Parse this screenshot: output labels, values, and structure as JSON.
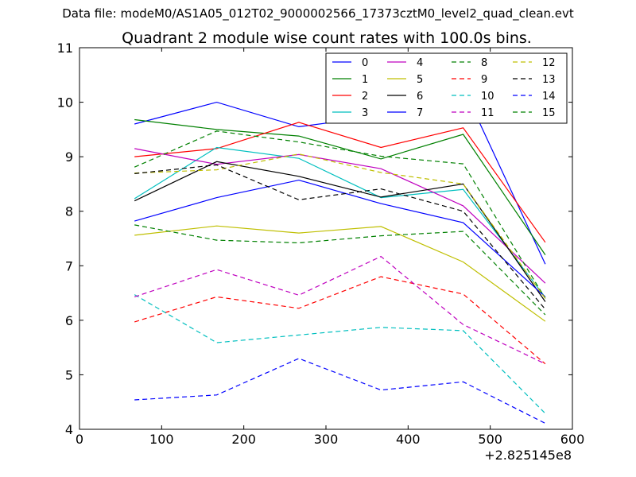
{
  "suptitle": "Data file: modeM0/AS1A05_012T02_9000002566_17373cztM0_level2_quad_clean.evt",
  "chart_data": {
    "type": "line",
    "title": "Quadrant 2 module wise count rates with 100.0s bins.",
    "xlim": [
      0,
      600
    ],
    "ylim": [
      4,
      11
    ],
    "x_ticks": [
      0,
      100,
      200,
      300,
      400,
      500,
      600
    ],
    "y_ticks": [
      4,
      5,
      6,
      7,
      8,
      9,
      10,
      11
    ],
    "x_offset_label": "+2.825145e8",
    "legend_position": "top-right",
    "x": [
      67,
      167,
      267,
      367,
      467,
      567
    ],
    "series": [
      {
        "name": "0",
        "color": "#0000ff",
        "dash": "solid",
        "values": [
          9.6,
          10.0,
          9.55,
          9.75,
          10.27,
          7.03
        ]
      },
      {
        "name": "1",
        "color": "#008000",
        "dash": "solid",
        "values": [
          9.68,
          9.5,
          9.38,
          8.96,
          9.41,
          7.2
        ]
      },
      {
        "name": "2",
        "color": "#ff0000",
        "dash": "solid",
        "values": [
          9.0,
          9.15,
          9.63,
          9.17,
          9.53,
          7.43
        ]
      },
      {
        "name": "3",
        "color": "#00bfbf",
        "dash": "solid",
        "values": [
          8.23,
          9.17,
          8.97,
          8.25,
          8.4,
          6.42
        ]
      },
      {
        "name": "4",
        "color": "#bf00bf",
        "dash": "solid",
        "values": [
          9.15,
          8.86,
          9.04,
          8.78,
          8.1,
          6.68
        ]
      },
      {
        "name": "5",
        "color": "#bfbf00",
        "dash": "solid",
        "values": [
          7.56,
          7.73,
          7.6,
          7.72,
          7.07,
          5.98
        ]
      },
      {
        "name": "6",
        "color": "#000000",
        "dash": "solid",
        "values": [
          8.19,
          8.91,
          8.64,
          8.26,
          8.5,
          6.34
        ]
      },
      {
        "name": "7",
        "color": "#0000ff",
        "dash": "solid",
        "values": [
          7.82,
          8.25,
          8.57,
          8.14,
          7.79,
          6.43
        ]
      },
      {
        "name": "8",
        "color": "#008000",
        "dash": "dashed",
        "values": [
          8.81,
          9.47,
          9.27,
          9.01,
          8.87,
          6.4
        ]
      },
      {
        "name": "9",
        "color": "#ff0000",
        "dash": "dashed",
        "values": [
          5.97,
          6.43,
          6.22,
          6.8,
          6.48,
          5.2
        ]
      },
      {
        "name": "10",
        "color": "#00bfbf",
        "dash": "dashed",
        "values": [
          6.47,
          5.59,
          5.73,
          5.87,
          5.81,
          4.29
        ]
      },
      {
        "name": "11",
        "color": "#bf00bf",
        "dash": "dashed",
        "values": [
          6.43,
          6.93,
          6.46,
          7.17,
          5.92,
          5.2
        ]
      },
      {
        "name": "12",
        "color": "#bfbf00",
        "dash": "dashed",
        "values": [
          8.7,
          8.76,
          9.05,
          8.71,
          8.5,
          6.4
        ]
      },
      {
        "name": "13",
        "color": "#000000",
        "dash": "dashed",
        "values": [
          8.69,
          8.85,
          8.21,
          8.41,
          8.0,
          6.2
        ]
      },
      {
        "name": "14",
        "color": "#0000ff",
        "dash": "dashed",
        "values": [
          4.54,
          4.63,
          5.3,
          4.72,
          4.87,
          4.11
        ]
      },
      {
        "name": "15",
        "color": "#008000",
        "dash": "dashed",
        "values": [
          7.75,
          7.47,
          7.42,
          7.55,
          7.63,
          6.1
        ]
      }
    ]
  }
}
